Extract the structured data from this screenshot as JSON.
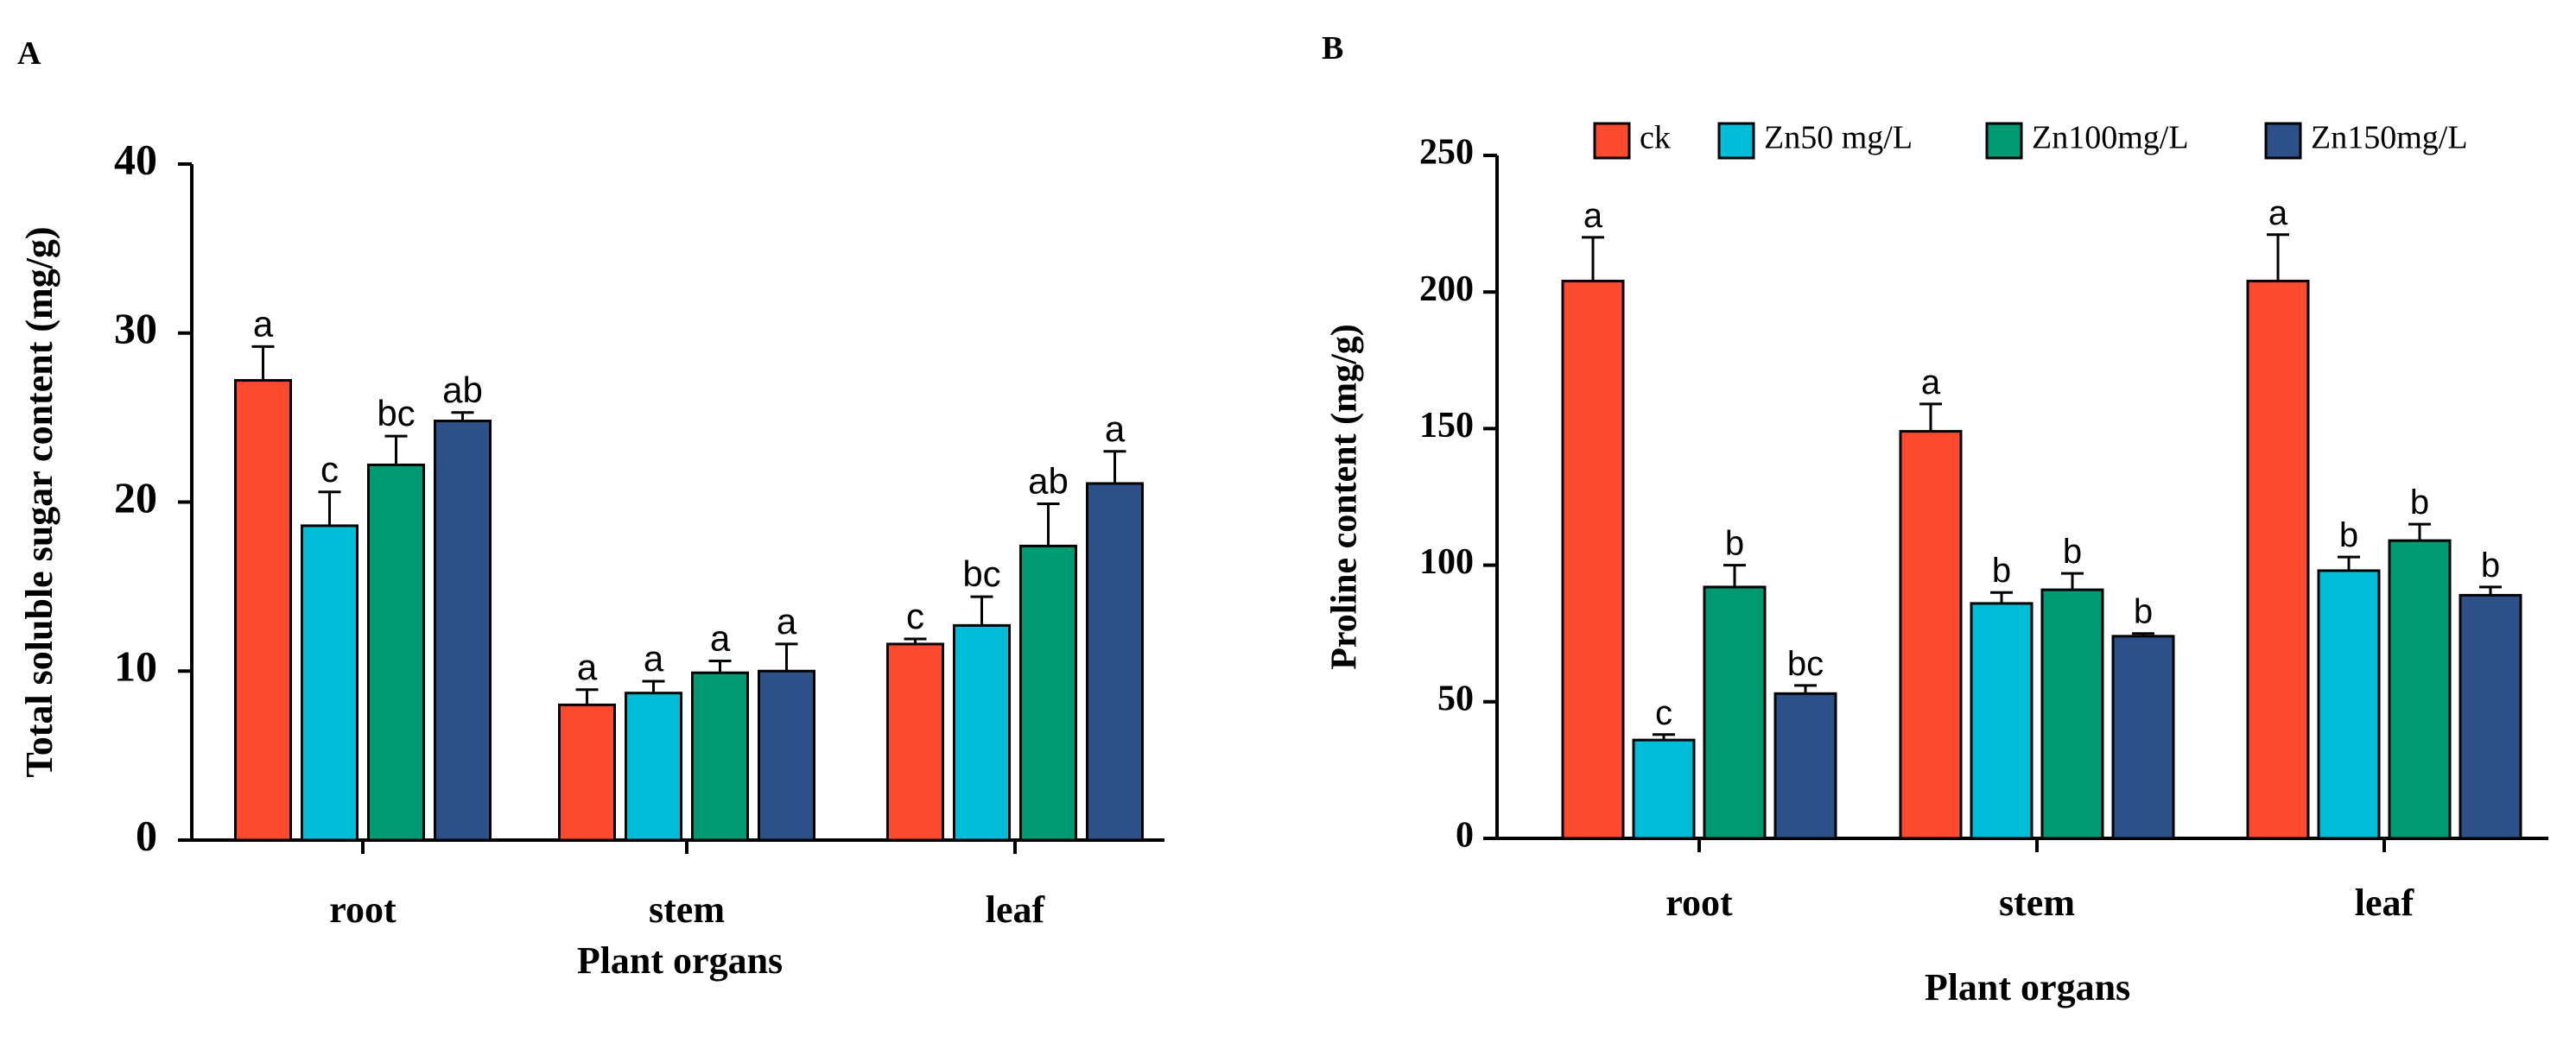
{
  "chart_data": [
    {
      "panel": "A",
      "type": "bar",
      "categories": [
        "root",
        "stem",
        "leaf"
      ],
      "xlabel": "Plant organs",
      "ylabel": "Total soluble sugar content (mg/g)",
      "ylim": [
        0,
        40
      ],
      "yticks": [
        0,
        10,
        20,
        30,
        40
      ],
      "legend": "none",
      "series": [
        {
          "name": "ck",
          "color": "#fb4a2e",
          "values": [
            27.2,
            8.0,
            11.6
          ],
          "errors": [
            2.0,
            0.9,
            0.3
          ],
          "labels": [
            "a",
            "a",
            "c"
          ]
        },
        {
          "name": "Zn50 mg/L",
          "color": "#00bcd6",
          "values": [
            18.6,
            8.7,
            12.7
          ],
          "errors": [
            2.0,
            0.7,
            1.7
          ],
          "labels": [
            "c",
            "a",
            "bc"
          ]
        },
        {
          "name": "Zn100mg/L",
          "color": "#009a72",
          "values": [
            22.2,
            9.9,
            17.4
          ],
          "errors": [
            1.7,
            0.7,
            2.5
          ],
          "labels": [
            "bc",
            "a",
            "ab"
          ]
        },
        {
          "name": "Zn150mg/L",
          "color": "#2d5088",
          "values": [
            24.8,
            10.0,
            21.1
          ],
          "errors": [
            0.5,
            1.6,
            1.9
          ],
          "labels": [
            "ab",
            "a",
            "a"
          ]
        }
      ]
    },
    {
      "panel": "B",
      "type": "bar",
      "categories": [
        "root",
        "stem",
        "leaf"
      ],
      "xlabel": "Plant organs",
      "ylabel": "Proline content (mg/g)",
      "ylim": [
        0,
        250
      ],
      "yticks": [
        0,
        50,
        100,
        150,
        200,
        250
      ],
      "legend": "top",
      "series": [
        {
          "name": "ck",
          "color": "#fb4a2e",
          "values": [
            204,
            149,
            204
          ],
          "errors": [
            16,
            10,
            17
          ],
          "labels": [
            "a",
            "a",
            "a"
          ]
        },
        {
          "name": "Zn50 mg/L",
          "color": "#00bcd6",
          "values": [
            36,
            86,
            98
          ],
          "errors": [
            2,
            4,
            5
          ],
          "labels": [
            "c",
            "b",
            "b"
          ]
        },
        {
          "name": "Zn100mg/L",
          "color": "#009a72",
          "values": [
            92,
            91,
            109
          ],
          "errors": [
            8,
            6,
            6
          ],
          "labels": [
            "b",
            "b",
            "b"
          ]
        },
        {
          "name": "Zn150mg/L",
          "color": "#2d5088",
          "values": [
            53,
            74,
            89
          ],
          "errors": [
            3,
            1,
            3
          ],
          "labels": [
            "bc",
            "b",
            "b"
          ]
        }
      ]
    }
  ]
}
